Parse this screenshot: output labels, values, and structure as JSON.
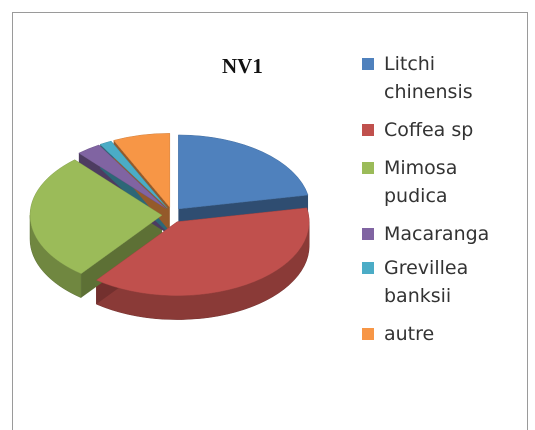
{
  "chart_data": {
    "type": "pie3d",
    "title": "NV1",
    "categories": [
      "Litchi chinensis",
      "Coffea sp",
      "Mimosa pudica",
      "Macaranga",
      "Grevillea banksii",
      "autre"
    ],
    "values": [
      22,
      38.5,
      28,
      3,
      1.5,
      7
    ],
    "colors": [
      "#4f81bd",
      "#c0504d",
      "#9bbb59",
      "#8064a2",
      "#4bacc6",
      "#f79646"
    ],
    "legend": "right"
  }
}
